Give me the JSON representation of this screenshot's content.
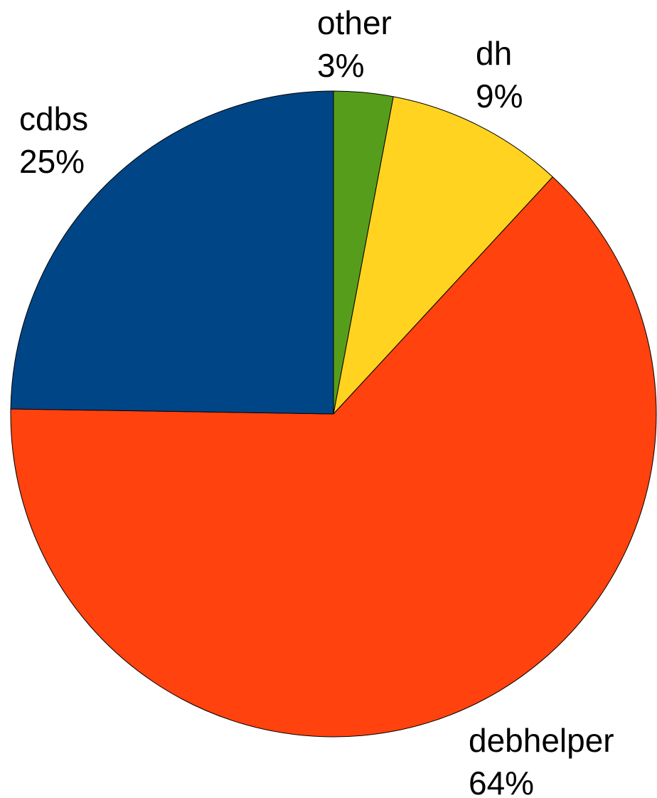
{
  "chart_data": {
    "type": "pie",
    "start": "12 o'clock",
    "direction": "clockwise",
    "slices": [
      {
        "label": "other",
        "value": 3,
        "value_label": "3%",
        "color": "#579d1c"
      },
      {
        "label": "dh",
        "value": 9,
        "value_label": "9%",
        "color": "#ffd320"
      },
      {
        "label": "debhelper",
        "value": 64,
        "value_label": "64%",
        "color": "#ff420e"
      },
      {
        "label": "cdbs",
        "value": 25,
        "value_label": "25%",
        "color": "#004586"
      }
    ]
  }
}
